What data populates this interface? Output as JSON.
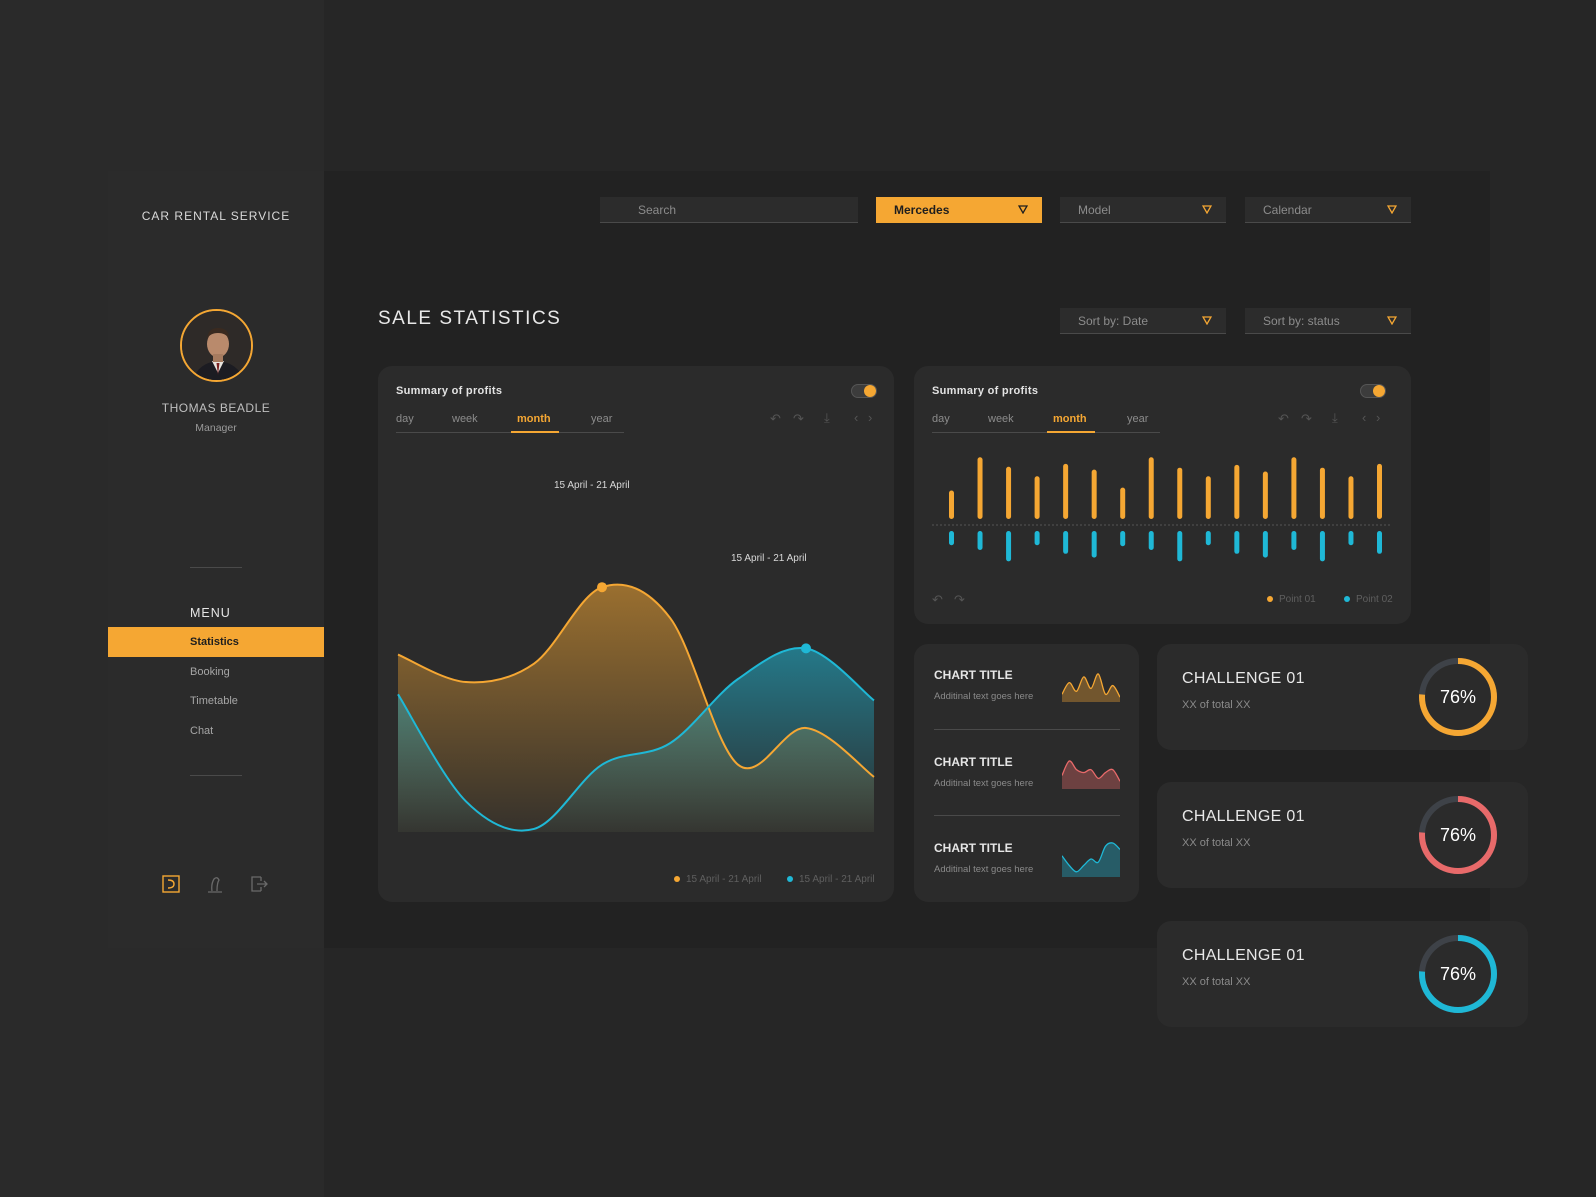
{
  "app": {
    "brand": "CAR RENTAL SERVICE"
  },
  "user": {
    "name": "THOMAS BEADLE",
    "role": "Manager"
  },
  "menu": {
    "title": "MENU",
    "items": [
      {
        "label": "Statistics",
        "active": true
      },
      {
        "label": "Booking"
      },
      {
        "label": "Timetable"
      },
      {
        "label": "Chat"
      }
    ]
  },
  "sidebar_icons": [
    "dashboard-icon",
    "profile-icon",
    "logout-icon"
  ],
  "topbar": {
    "search_placeholder": "Search",
    "brand_select": "Mercedes",
    "model_select": "Model",
    "calendar_select": "Calendar"
  },
  "page": {
    "title": "SALE STATISTICS",
    "sort_date": "Sort by: Date",
    "sort_status": "Sort by: status"
  },
  "colors": {
    "accent": "#f5a733",
    "teal": "#1fb8d6",
    "red": "#e86a6a",
    "bg": "#262626",
    "card": "#2b2b2b"
  },
  "tabs": [
    "day",
    "week",
    "month",
    "year"
  ],
  "active_tab": "month",
  "area_card": {
    "title": "Summary of profits",
    "toggle_on": true,
    "peak_label_1": "15 April - 21 April",
    "peak_label_2": "15 April - 21 April",
    "legend": [
      "15 April - 21 April",
      "15 April - 21 April"
    ]
  },
  "bar_card": {
    "title": "Summary of profits",
    "toggle_on": true,
    "legend": [
      "Point 01",
      "Point 02"
    ]
  },
  "chart_data": [
    {
      "type": "area",
      "series": [
        {
          "name": "15 April - 21 April",
          "color": "#f5a733",
          "values": [
            58,
            49,
            55,
            80,
            70,
            22,
            34,
            18
          ]
        },
        {
          "name": "15 April - 21 April",
          "color": "#1fb8d6",
          "values": [
            45,
            10,
            1,
            22,
            29,
            50,
            60,
            43
          ]
        }
      ],
      "ylim": [
        0,
        100
      ],
      "grid": false
    },
    {
      "type": "bar",
      "series": [
        {
          "name": "Point 01",
          "color": "#f5a733",
          "values": [
            3,
            6.5,
            5.5,
            4.5,
            5.8,
            5.2,
            3.3,
            6.5,
            5.4,
            4.5,
            5.7,
            5,
            6.5,
            5.4,
            4.5,
            5.8
          ]
        },
        {
          "name": "Point 02",
          "color": "#1fb8d6",
          "values": [
            -1.5,
            -2,
            -3.2,
            -1.5,
            -2.4,
            -2.8,
            -1.6,
            -2,
            -3.2,
            -1.5,
            -2.4,
            -2.8,
            -2,
            -3.2,
            -1.5,
            -2.4
          ]
        }
      ],
      "grid": false
    }
  ],
  "mini_charts": [
    {
      "title": "CHART TITLE",
      "subtitle": "Additinal text goes here",
      "color": "#f5a733",
      "values": [
        2,
        6,
        3,
        8,
        4,
        9,
        2,
        5,
        1
      ]
    },
    {
      "title": "CHART TITLE",
      "subtitle": "Additinal text goes here",
      "color": "#e86a6a",
      "values": [
        4,
        9,
        6,
        5,
        6,
        3,
        5,
        6,
        2
      ]
    },
    {
      "title": "CHART TITLE",
      "subtitle": "Additinal text goes here",
      "color": "#1fb8d6",
      "values": [
        6,
        3,
        1,
        3,
        5,
        4,
        9,
        10,
        8
      ]
    }
  ],
  "challenges": [
    {
      "title": "CHALLENGE 01",
      "subtitle": "XX of total XX",
      "percent": "76%",
      "value": 0.76,
      "color": "#f5a733"
    },
    {
      "title": "CHALLENGE 01",
      "subtitle": "XX of total XX",
      "percent": "76%",
      "value": 0.76,
      "color": "#e86a6a"
    },
    {
      "title": "CHALLENGE 01",
      "subtitle": "XX of total XX",
      "percent": "76%",
      "value": 0.76,
      "color": "#1fb8d6"
    }
  ]
}
